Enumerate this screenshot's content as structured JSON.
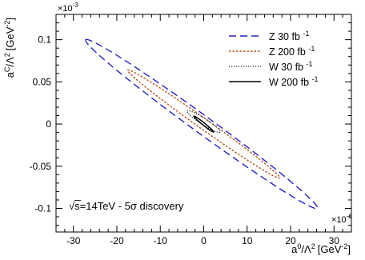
{
  "chart_data": {
    "type": "line",
    "xlabel_base": "a",
    "xlabel_sup": "0",
    "xlabel_mid": "/Λ",
    "xlabel_mid_sup": "2",
    "xlabel_unit": "[GeV",
    "xlabel_unit_sup": "-2",
    "xlabel_unit_end": "]",
    "ylabel_base": "a",
    "ylabel_sup": "C",
    "ylabel_mid": "/Λ",
    "ylabel_mid_sup": "2",
    "ylabel_unit": "[GeV",
    "ylabel_unit_sup": "-2",
    "ylabel_unit_end": "]",
    "x_multiplier_base": "×10",
    "x_multiplier_exp": "-6",
    "y_multiplier_base": "×10",
    "y_multiplier_exp": "-3",
    "xlim": [
      -34,
      34
    ],
    "ylim": [
      -0.128,
      0.13
    ],
    "x_ticks": [
      -30,
      -20,
      -10,
      0,
      10,
      20,
      30
    ],
    "x_tick_labels": [
      "-30",
      "-20",
      "-10",
      "0",
      "10",
      "20",
      "30"
    ],
    "y_ticks": [
      -0.1,
      -0.05,
      0,
      0.05,
      0.1
    ],
    "y_tick_labels": [
      "-0.1",
      "-0.05",
      "0",
      "0.05",
      "0.1"
    ],
    "annotation_sqrt": "√",
    "annotation_text": "s=14TeV - 5σ discovery",
    "grid": false,
    "legend_position": "top-right",
    "series": [
      {
        "name": "Z  30 fb",
        "name_sup": "-1",
        "style": "dashed",
        "color": "#2222cc",
        "ellipse": {
          "cx": -0.5,
          "cy": 0.0,
          "extreme_x": [
            -27.2,
            0.1
          ],
          "extreme_y": [
            -0.4,
            0.1
          ],
          "minor_point_offset": [
            0.0,
            0.013
          ]
        }
      },
      {
        "name": "Z  200 fb",
        "name_sup": "-1",
        "style": "dotted-fine",
        "color": "#b8501a",
        "ellipse": {
          "cx": 0.0,
          "cy": 0.0,
          "extreme_x": [
            -17.5,
            0.064
          ],
          "extreme_y": [
            -0.8,
            0.0628
          ],
          "minor_point_offset": [
            0.0,
            0.0075
          ]
        }
      },
      {
        "name": "W 30 fb",
        "name_sup": "-1",
        "style": "dotted",
        "color": "#222222",
        "ellipse": {
          "cx": 0.0,
          "cy": 0.003,
          "extreme_x": [
            -3.8,
            0.0155
          ],
          "extreme_y": [
            -0.3,
            0.0155
          ],
          "minor_point_offset": [
            0.0,
            0.0045
          ]
        }
      },
      {
        "name": "W 200 fb",
        "name_sup": "-1",
        "style": "solid",
        "color": "#000000",
        "ellipse": {
          "cx": 0.0,
          "cy": 0.0,
          "extreme_x": [
            -2.3,
            0.0095
          ],
          "extreme_y": [
            -0.2,
            0.0095
          ],
          "minor_point_offset": [
            0.0,
            0.0018
          ]
        }
      }
    ]
  }
}
